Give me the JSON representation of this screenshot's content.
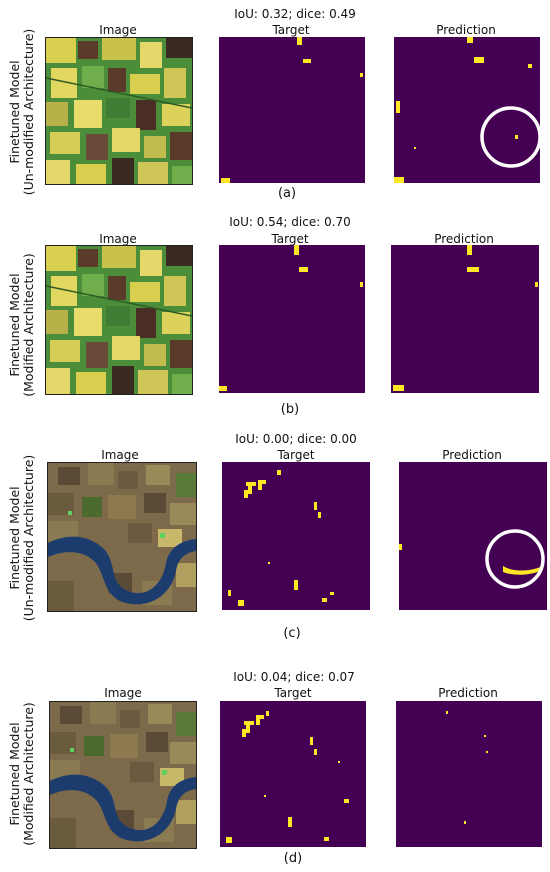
{
  "colors": {
    "background_mask": "#440154",
    "foreground_mask": "#fde725",
    "circle": "#ffffff",
    "field_green": "#4c8d3a",
    "field_yellow": "#d9cf4f",
    "field_brown": "#5a3a2a",
    "river": "#1d3c6e",
    "soil": "#7d6a4a"
  },
  "panels": [
    {
      "metric": "IoU: 0.32; dice: 0.49",
      "ylabel_line1": "Finetuned Model",
      "ylabel_line2": "(Un-modified Architecture)",
      "col_image": "Image",
      "col_target": "Target",
      "col_prediction": "Prediction",
      "sublabel": "(a)"
    },
    {
      "metric": "IoU: 0.54; dice: 0.70",
      "ylabel_line1": "Finetuned Model",
      "ylabel_line2": "(Modified Architecture)",
      "col_image": "Image",
      "col_target": "Target",
      "col_prediction": "Prediction",
      "sublabel": "(b)"
    },
    {
      "metric": "IoU: 0.00; dice: 0.00",
      "ylabel_line1": "Finetuned Model",
      "ylabel_line2": "(Un-modified Architecture)",
      "col_image": "Image",
      "col_target": "Target",
      "col_prediction": "Prediction",
      "sublabel": "(c)"
    },
    {
      "metric": "IoU: 0.04; dice: 0.07",
      "ylabel_line1": "Finetuned Model",
      "ylabel_line2": "(Modified Architecture)",
      "col_image": "Image",
      "col_target": "Target",
      "col_prediction": "Prediction",
      "sublabel": "(d)"
    }
  ]
}
